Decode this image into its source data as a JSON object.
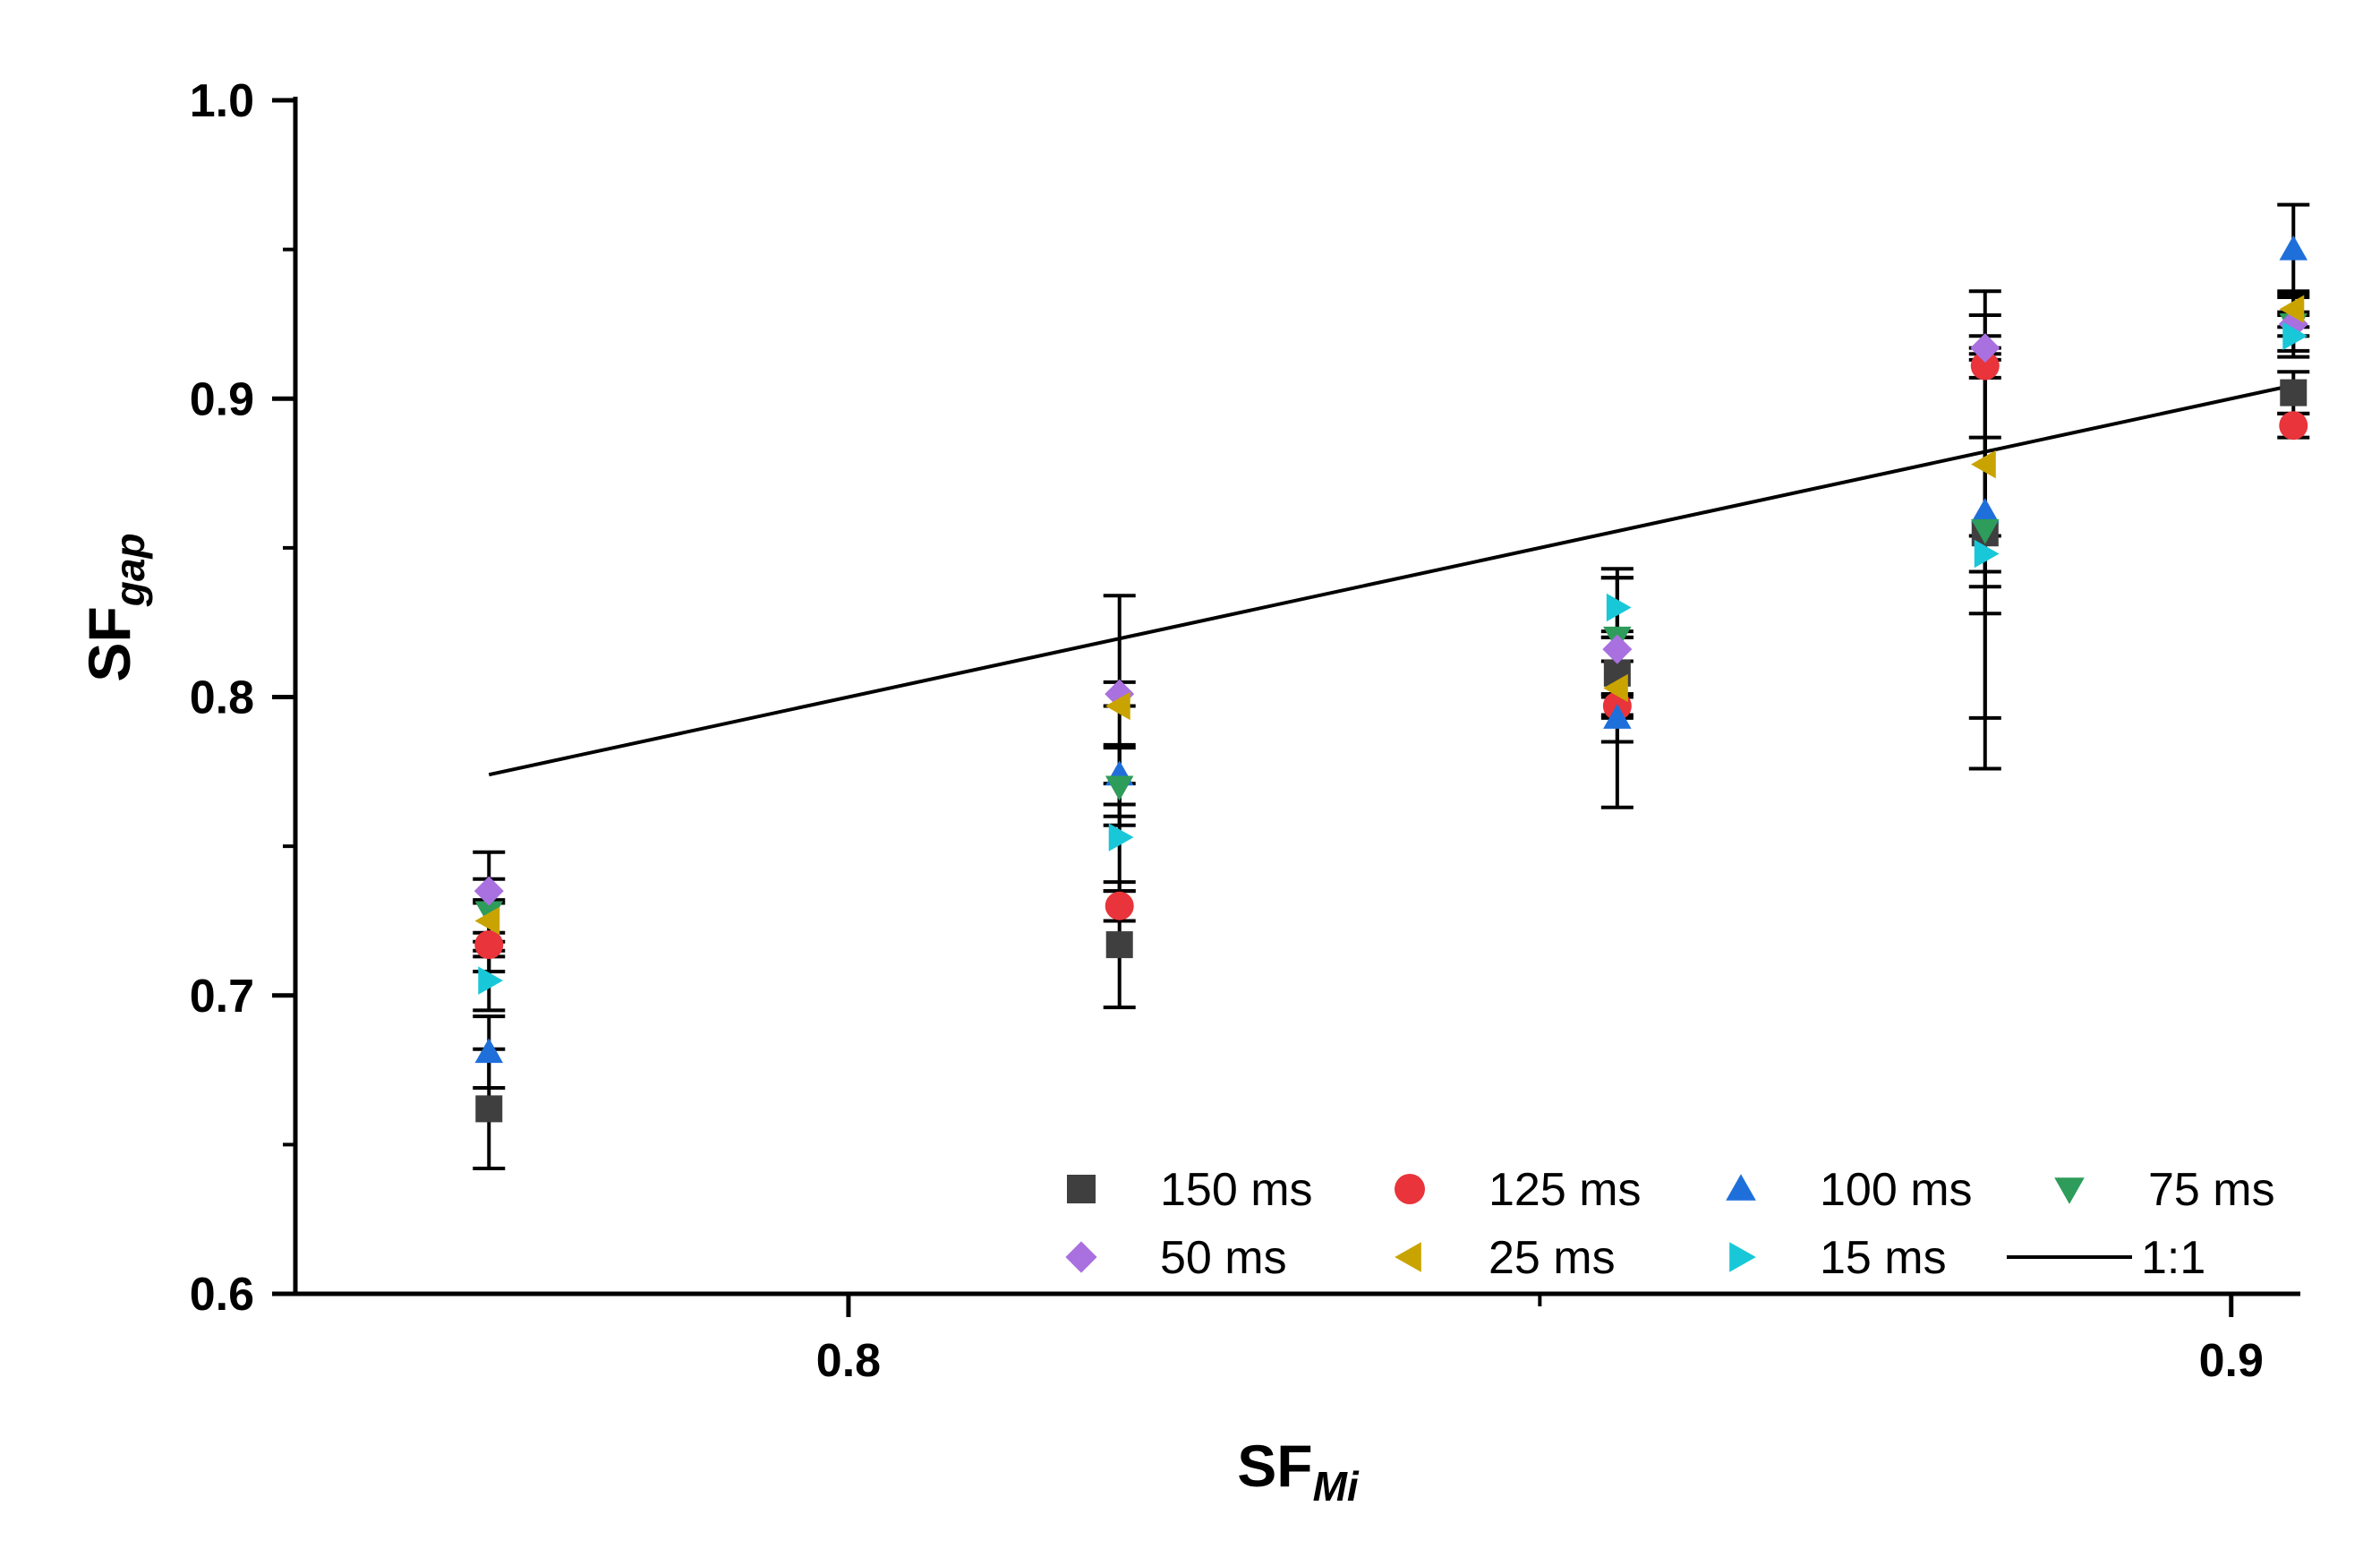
{
  "chart_data": {
    "type": "scatter",
    "title": "",
    "xlabel": {
      "main": "SF",
      "sub": "Mi"
    },
    "ylabel": {
      "main": "SF",
      "sub": "gap"
    },
    "xlim": [
      0.76,
      0.905
    ],
    "ylim": [
      0.6,
      1.0
    ],
    "x_ticks": [
      0.8,
      0.9
    ],
    "x_tick_labels": [
      "0.8",
      "0.9"
    ],
    "x_minor_ticks": [
      0.85
    ],
    "y_ticks": [
      0.6,
      0.7,
      0.8,
      0.9,
      1.0
    ],
    "y_tick_labels": [
      "0.6",
      "0.7",
      "0.8",
      "0.9",
      "1.0"
    ],
    "grid": false,
    "legend_position": "bottom-right",
    "x": [
      0.774,
      0.8196,
      0.8556,
      0.8822,
      0.9045
    ],
    "series": [
      {
        "name": "150 ms",
        "marker": "square",
        "color": "#3f3f3f",
        "values": [
          0.662,
          0.717,
          0.808,
          0.855,
          0.902
        ],
        "errors": [
          0.02,
          0.021,
          0.014,
          0.062,
          0.007
        ]
      },
      {
        "name": "125 ms",
        "marker": "circle",
        "color": "#e8343a",
        "values": [
          0.717,
          0.73,
          0.797,
          0.911,
          0.891
        ],
        "errors": [
          0.004,
          0.005,
          0.004,
          0.004,
          0.004
        ]
      },
      {
        "name": "100 ms",
        "marker": "triangle-up",
        "color": "#1f6fdb",
        "values": [
          0.681,
          0.774,
          0.793,
          0.862,
          0.95
        ],
        "errors": [
          0.012,
          0.01,
          0.008,
          0.025,
          0.015
        ]
      },
      {
        "name": "75 ms",
        "marker": "triangle-down",
        "color": "#2e9c5a",
        "values": [
          0.728,
          0.77,
          0.82,
          0.856,
          0.925
        ],
        "errors": [
          0.02,
          0.013,
          0.02,
          0.08,
          0.009
        ]
      },
      {
        "name": "50 ms",
        "marker": "diamond",
        "color": "#a970e0",
        "values": [
          0.735,
          0.801,
          0.816,
          0.917,
          0.925
        ],
        "errors": [
          0.004,
          0.004,
          0.004,
          0.004,
          0.004
        ]
      },
      {
        "name": "25 ms",
        "marker": "triangle-left",
        "color": "#c9a400",
        "values": [
          0.725,
          0.797,
          0.803,
          0.878,
          0.93
        ],
        "errors": [
          0.007,
          0.037,
          0.04,
          0.05,
          0.006
        ]
      },
      {
        "name": "15 ms",
        "marker": "triangle-right",
        "color": "#18c8d8",
        "values": [
          0.705,
          0.753,
          0.83,
          0.848,
          0.921
        ],
        "errors": [
          0.01,
          0.018,
          0.01,
          0.006,
          0.007
        ]
      }
    ],
    "reference_line": {
      "name": "1:1",
      "x": [
        0.774,
        0.905
      ],
      "y": [
        0.774,
        0.905
      ],
      "color": "#000000"
    }
  }
}
